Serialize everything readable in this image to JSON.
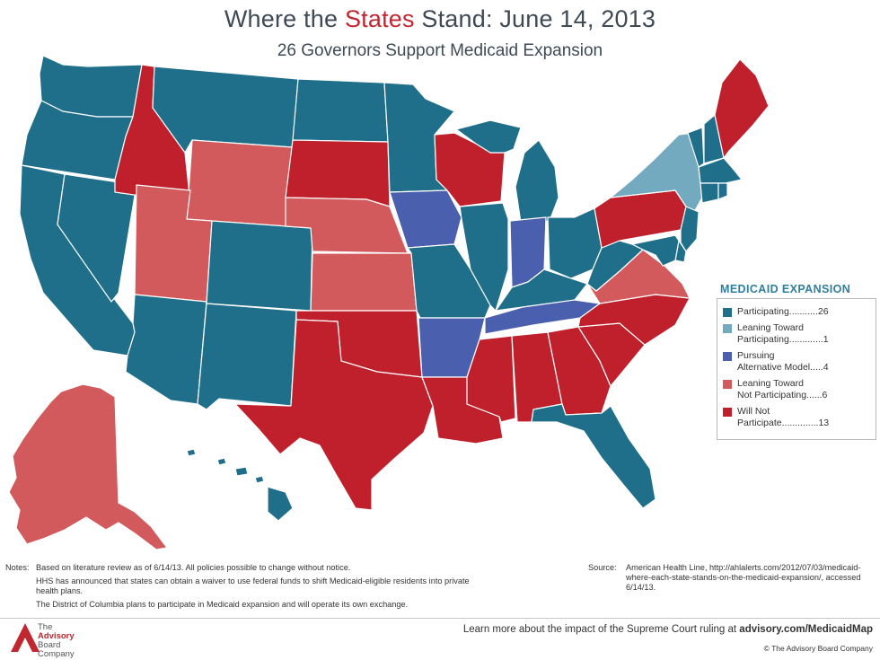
{
  "title": {
    "prefix": "Where the ",
    "highlight": "States",
    "suffix": " Stand: June 14, 2013"
  },
  "subtitle": "26 Governors Support Medicaid Expansion",
  "colors": {
    "participating": "#1f6f8b",
    "leaning_toward_participating": "#74aac0",
    "pursuing_alternative": "#4a5fae",
    "leaning_toward_not": "#d25a5c",
    "will_not_participate": "#c0202b"
  },
  "legend": {
    "title": "MEDICAID EXPANSION",
    "items": [
      {
        "label": "Participating",
        "dots": "...........",
        "count": "26",
        "color_key": "participating"
      },
      {
        "label": "Leaning Toward\nParticipating",
        "dots": ".............",
        "count": "1",
        "color_key": "leaning_toward_participating"
      },
      {
        "label": "Pursuing\nAlternative Model",
        "dots": ".....",
        "count": "4",
        "color_key": "pursuing_alternative"
      },
      {
        "label": "Leaning Toward\nNot Participating",
        "dots": "......",
        "count": "6",
        "color_key": "leaning_toward_not"
      },
      {
        "label": "Will Not\nParticipate",
        "dots": "..............",
        "count": "13",
        "color_key": "will_not_participate"
      }
    ]
  },
  "state_status": {
    "WA": "participating",
    "OR": "participating",
    "CA": "participating",
    "NV": "participating",
    "ID": "will_not_participate",
    "MT": "participating",
    "WY": "leaning_toward_not",
    "UT": "leaning_toward_not",
    "AZ": "participating",
    "CO": "participating",
    "NM": "participating",
    "ND": "participating",
    "SD": "will_not_participate",
    "NE": "leaning_toward_not",
    "KS": "leaning_toward_not",
    "OK": "will_not_participate",
    "TX": "will_not_participate",
    "MN": "participating",
    "IA": "pursuing_alternative",
    "MO": "participating",
    "AR": "pursuing_alternative",
    "LA": "will_not_participate",
    "WI": "will_not_participate",
    "IL": "participating",
    "MI": "participating",
    "IN": "pursuing_alternative",
    "OH": "participating",
    "KY": "participating",
    "TN": "pursuing_alternative",
    "MS": "will_not_participate",
    "AL": "will_not_participate",
    "GA": "will_not_participate",
    "FL": "participating",
    "SC": "will_not_participate",
    "NC": "will_not_participate",
    "VA": "leaning_toward_not",
    "WV": "participating",
    "PA": "will_not_participate",
    "NY": "leaning_toward_participating",
    "VT": "participating",
    "NH": "participating",
    "ME": "will_not_participate",
    "MA": "participating",
    "RI": "participating",
    "CT": "participating",
    "NJ": "participating",
    "DE": "participating",
    "MD": "participating",
    "AK": "leaning_toward_not",
    "HI": "participating"
  },
  "notes": {
    "label": "Notes:",
    "lines": [
      "Based on literature review as of 6/14/13. All policies possible to change without notice.",
      "HHS has announced that states can obtain a waiver to use federal funds to shift Medicaid-eligible residents into private health plans.",
      "The District of Columbia plans to participate in Medicaid expansion and will operate its own exchange."
    ]
  },
  "source": {
    "label": "Source:",
    "text": "American Health Line, http://ahlalerts.com/2012/07/03/medicaid-where-each-state-stands-on-the-medicaid-expansion/, accessed 6/14/13."
  },
  "footer": {
    "logo_lines": [
      "The",
      "Advisory",
      "Board",
      "Company"
    ],
    "learn_more_prefix": "Learn more about the impact of the Supreme Court ruling at ",
    "learn_more_link": "advisory.com/MedicaidMap",
    "copyright": "© The Advisory Board Company"
  }
}
